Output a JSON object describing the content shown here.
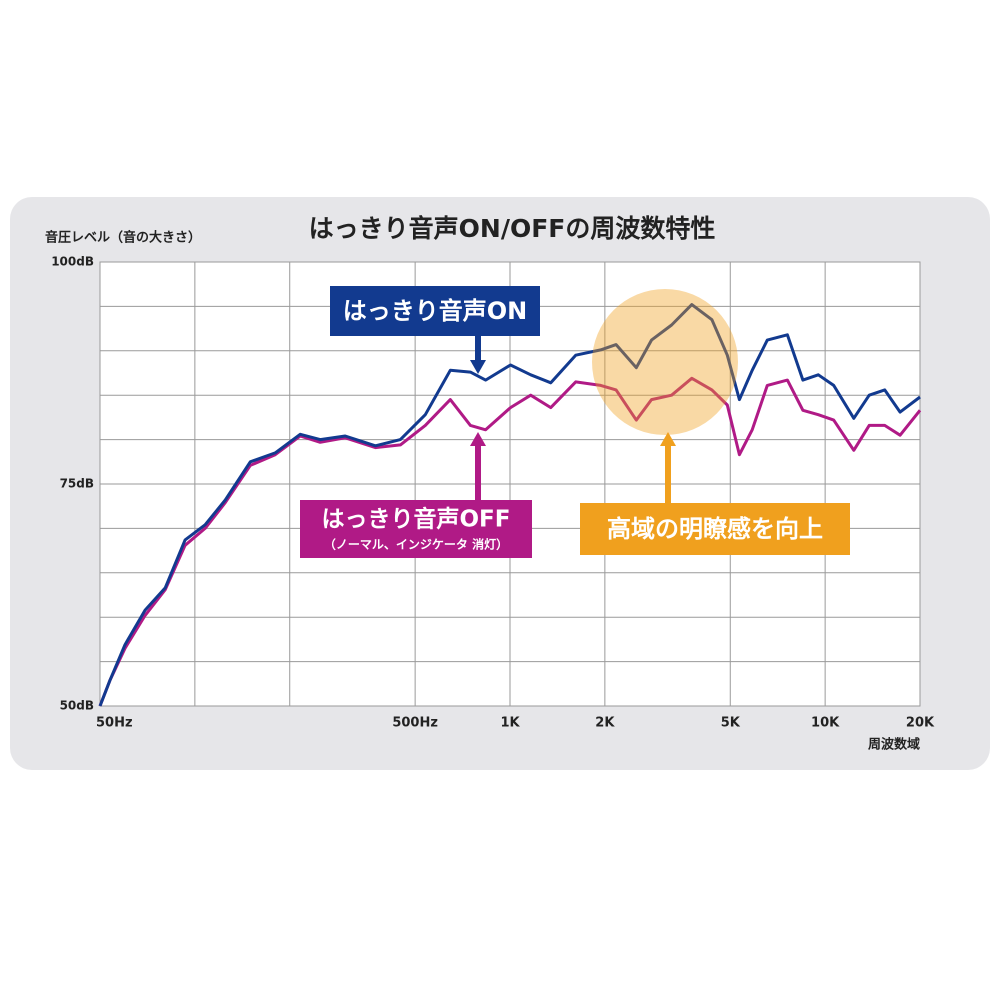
{
  "chart_data": {
    "type": "line",
    "title": "はっきり音声ON/OFFの周波数特性",
    "y_label": "音圧レベル（音の大きさ）",
    "x_label": "周波数域",
    "log_x": true,
    "grid": true,
    "xlim": [
      50,
      20000
    ],
    "ylim": [
      50,
      100
    ],
    "xticks": [
      {
        "value": 50,
        "label": "50Hz"
      },
      {
        "value": 500,
        "label": "500Hz"
      },
      {
        "value": 1000,
        "label": "1K"
      },
      {
        "value": 2000,
        "label": "2K"
      },
      {
        "value": 5000,
        "label": "5K"
      },
      {
        "value": 10000,
        "label": "10K"
      },
      {
        "value": 20000,
        "label": "20K"
      }
    ],
    "x_minor_grid": [
      100,
      200
    ],
    "yticks": [
      {
        "value": 50,
        "label": "50dB"
      },
      {
        "value": 75,
        "label": "75dB"
      },
      {
        "value": 100,
        "label": "100dB"
      }
    ],
    "y_minor_grid": [
      55,
      60,
      65,
      70,
      80,
      85,
      90,
      95
    ],
    "x": [
      50,
      53.8,
      60,
      69.5,
      80.5,
      93.1,
      107.8,
      124.9,
      149.9,
      179.9,
      215.9,
      249.9,
      299.9,
      373.9,
      448.9,
      538.7,
      646.4,
      748.6,
      836.6,
      1004,
      1163,
      1347,
      1616,
      1940,
      2171,
      2516,
      2812,
      3258,
      3774,
      4373,
      4894,
      5346,
      5867,
      6554,
      7593,
      8498,
      9510,
      10646,
      12332,
      13802,
      15448,
      17290,
      20000
    ],
    "series": [
      {
        "name": "はっきり音声ON",
        "color": "#123a8f",
        "values": [
          50,
          52.9,
          56.9,
          60.8,
          63.3,
          68.7,
          70.4,
          73.2,
          77.5,
          78.5,
          80.6,
          80.0,
          80.4,
          79.3,
          80.0,
          82.8,
          87.8,
          87.6,
          86.7,
          88.4,
          87.3,
          86.4,
          89.5,
          90.1,
          90.7,
          88.1,
          91.2,
          92.9,
          95.2,
          93.5,
          89.5,
          84.5,
          87.8,
          91.2,
          91.8,
          86.7,
          87.3,
          86.1,
          82.4,
          85.0,
          85.6,
          83.1,
          84.8
        ]
      },
      {
        "name": "はっきり音声OFF",
        "color": "#b01a86",
        "note": "（ノーマル、インジケータ 消灯）",
        "values": [
          50,
          52.9,
          56.5,
          60.2,
          63.1,
          68.1,
          70.0,
          72.9,
          77.1,
          78.3,
          80.4,
          79.7,
          80.2,
          79.1,
          79.4,
          81.6,
          84.5,
          81.6,
          81.1,
          83.6,
          85.0,
          83.6,
          86.5,
          86.1,
          85.6,
          82.2,
          84.5,
          85.0,
          86.9,
          85.6,
          83.9,
          78.3,
          81.1,
          86.1,
          86.7,
          83.3,
          82.8,
          82.2,
          78.8,
          81.6,
          81.6,
          80.5,
          83.3
        ]
      }
    ],
    "highlight": {
      "label": "高域の明瞭感を向上",
      "color": "#f0a01e"
    }
  }
}
